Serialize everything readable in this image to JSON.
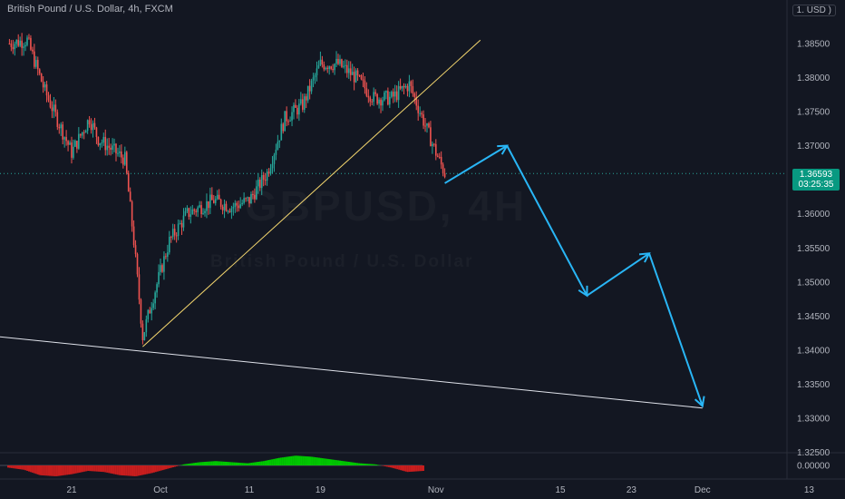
{
  "header": {
    "symbol_title": "British Pound / U.S. Dollar, 4h, FXCM",
    "currency_badge": "1. USD )"
  },
  "watermark": {
    "symbol": "GBPUSD, 4H",
    "name": "British Pound / U.S. Dollar"
  },
  "price_tag": {
    "price": "1.36593",
    "countdown": "03:25:35"
  },
  "colors": {
    "background": "#131722",
    "bull": "#26a69a",
    "bear": "#ef5350",
    "projection": "#29b6f6",
    "trendline_up": "#f5d76e",
    "trendline_down": "#e0e3eb",
    "osc_pos": "#00c800",
    "osc_neg": "#c81e1e"
  },
  "chart_data": {
    "type": "candlestick",
    "symbol": "GBPUSD",
    "timeframe": "4h",
    "y_axis": {
      "ticks": [
        "1.38500",
        "1.38000",
        "1.37500",
        "1.37000",
        "1.36000",
        "1.35500",
        "1.35000",
        "1.34500",
        "1.34000",
        "1.33500",
        "1.33000",
        "1.32500"
      ],
      "ylim": [
        1.325,
        1.389
      ]
    },
    "x_axis": {
      "ticks": [
        "21",
        "Oct",
        "11",
        "19",
        "Nov",
        "15",
        "23",
        "Dec",
        "13"
      ]
    },
    "last_price": 1.36593,
    "price_path_estimate": [
      {
        "date": "Sep 14",
        "close": 1.385
      },
      {
        "date": "Sep 16",
        "close": 1.3855
      },
      {
        "date": "Sep 18",
        "close": 1.378
      },
      {
        "date": "Sep 20",
        "close": 1.372
      },
      {
        "date": "Sep 21",
        "close": 1.369
      },
      {
        "date": "Sep 23",
        "close": 1.374
      },
      {
        "date": "Sep 24",
        "close": 1.371
      },
      {
        "date": "Sep 27",
        "close": 1.368
      },
      {
        "date": "Sep 28",
        "close": 1.356
      },
      {
        "date": "Sep 29",
        "close": 1.342
      },
      {
        "date": "Sep 30",
        "close": 1.347
      },
      {
        "date": "Oct 2",
        "close": 1.356
      },
      {
        "date": "Oct 4",
        "close": 1.36
      },
      {
        "date": "Oct 7",
        "close": 1.362
      },
      {
        "date": "Oct 9",
        "close": 1.361
      },
      {
        "date": "Oct 11",
        "close": 1.362
      },
      {
        "date": "Oct 13",
        "close": 1.366
      },
      {
        "date": "Oct 15",
        "close": 1.374
      },
      {
        "date": "Oct 17",
        "close": 1.376
      },
      {
        "date": "Oct 19",
        "close": 1.382
      },
      {
        "date": "Oct 21",
        "close": 1.382
      },
      {
        "date": "Oct 23",
        "close": 1.38
      },
      {
        "date": "Oct 25",
        "close": 1.377
      },
      {
        "date": "Oct 27",
        "close": 1.377
      },
      {
        "date": "Oct 29",
        "close": 1.379
      },
      {
        "date": "Nov 1",
        "close": 1.369
      },
      {
        "date": "Nov 2",
        "close": 1.36593
      }
    ],
    "drawings": {
      "ascending_trendline": [
        {
          "date": "Sep 29",
          "price": 1.3405
        },
        {
          "date": "Nov 6",
          "price": 1.3855
        }
      ],
      "descending_support_line": [
        {
          "date": "Sep 5",
          "price": 1.343
        },
        {
          "date": "Dec 1",
          "price": 1.3315
        }
      ],
      "projected_path": [
        {
          "date": "Nov 2",
          "price": 1.3645
        },
        {
          "date": "Nov 9",
          "price": 1.37
        },
        {
          "date": "Nov 18",
          "price": 1.348
        },
        {
          "date": "Nov 25",
          "price": 1.3542
        },
        {
          "date": "Dec 1",
          "price": 1.3318
        }
      ]
    },
    "oscillator": {
      "ticks": [
        "0.00000"
      ],
      "values": [
        -0.2,
        -0.4,
        -0.9,
        -1.0,
        -0.8,
        -0.5,
        -0.6,
        -0.9,
        -1.0,
        -0.7,
        -0.3,
        0.1,
        0.3,
        0.4,
        0.3,
        0.2,
        0.4,
        0.7,
        0.9,
        0.8,
        0.6,
        0.4,
        0.2,
        0.1,
        -0.2,
        -0.6,
        -0.5
      ]
    }
  }
}
